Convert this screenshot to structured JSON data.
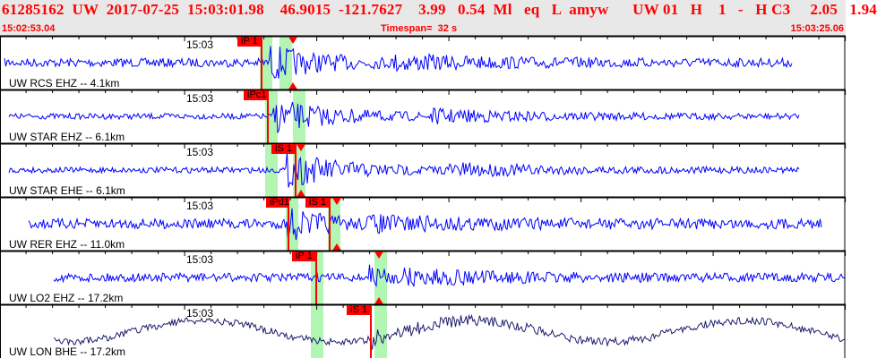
{
  "header": {
    "event_line": "61285162  UW  2017-07-25  15:03:01.98    46.9015  -121.7627    3.99   0.54  Ml   eq   L  amyw      UW 01   H    1   -   H C3     2.05   1.94",
    "start_time": "15:02:53.04",
    "timespan": "Timespan=  32 s",
    "end_time": "15:03:25.06"
  },
  "time_tick_label": "15:03",
  "colors": {
    "header_text": "#ff0000",
    "trace": "#0000ff",
    "trace_broadband": "#1c1c6b",
    "pick": "#ff0000",
    "window": "#b3f5b3"
  },
  "panels": [
    {
      "label": "UW RCS EHZ -- 4.1km",
      "picks": [
        {
          "label": "iP 1"
        }
      ]
    },
    {
      "label": "UW STAR EHZ -- 6.1km",
      "picks": [
        {
          "label": "iPc1"
        }
      ]
    },
    {
      "label": "UW STAR EHE -- 6.1km",
      "picks": [
        {
          "label": "iS 1"
        }
      ]
    },
    {
      "label": "UW RER EHZ -- 11.0km",
      "picks": [
        {
          "label": "iPd1"
        },
        {
          "label": "iS 1"
        }
      ]
    },
    {
      "label": "UW LO2 EHZ -- 17.2km",
      "picks": [
        {
          "label": "iP 1"
        }
      ]
    },
    {
      "label": "UW LON BHE -- 17.2km",
      "picks": [
        {
          "label": "iS 1"
        }
      ]
    }
  ]
}
